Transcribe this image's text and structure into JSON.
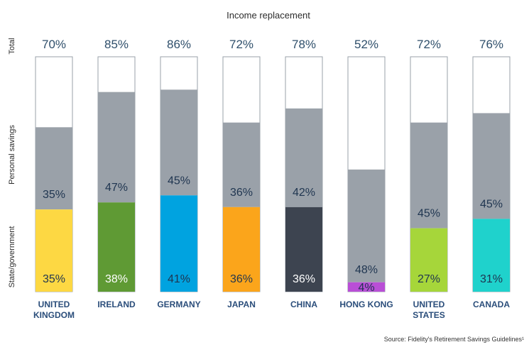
{
  "chart_data": {
    "type": "bar",
    "stacked": true,
    "title": "Income replacement",
    "source": "Source: Fidelity's Retirement Savings Guidelines¹",
    "side_labels": {
      "total": "Total",
      "personal": "Personal savings",
      "state": "State/government"
    },
    "ylim": [
      0,
      100
    ],
    "categories": [
      {
        "name": [
          "UNITED",
          "KINGDOM"
        ],
        "state": 35,
        "personal": 35,
        "total": 70,
        "color": "#fdd843",
        "state_label_color": "#1f3550"
      },
      {
        "name": [
          "IRELAND"
        ],
        "state": 38,
        "personal": 47,
        "total": 85,
        "color": "#5f9a34",
        "state_label_color": "#ffffff"
      },
      {
        "name": [
          "GERMANY"
        ],
        "state": 41,
        "personal": 45,
        "total": 86,
        "color": "#00a3e0",
        "state_label_color": "#1f3550"
      },
      {
        "name": [
          "JAPAN"
        ],
        "state": 36,
        "personal": 36,
        "total": 72,
        "color": "#fba51b",
        "state_label_color": "#1f3550"
      },
      {
        "name": [
          "CHINA"
        ],
        "state": 36,
        "personal": 42,
        "total": 78,
        "color": "#3d4450",
        "state_label_color": "#ffffff"
      },
      {
        "name": [
          "HONG KONG"
        ],
        "state": 4,
        "personal": 48,
        "total": 52,
        "color": "#b94fd6",
        "state_label_color": "#1f3550"
      },
      {
        "name": [
          "UNITED",
          "STATES"
        ],
        "state": 27,
        "personal": 45,
        "total": 72,
        "color": "#a6d63a",
        "state_label_color": "#1f3550"
      },
      {
        "name": [
          "CANADA"
        ],
        "state": 31,
        "personal": 45,
        "total": 76,
        "color": "#1fd2cc",
        "state_label_color": "#1f3550"
      }
    ],
    "personal_color": "#9aa1a9",
    "percent_suffix": "%"
  }
}
